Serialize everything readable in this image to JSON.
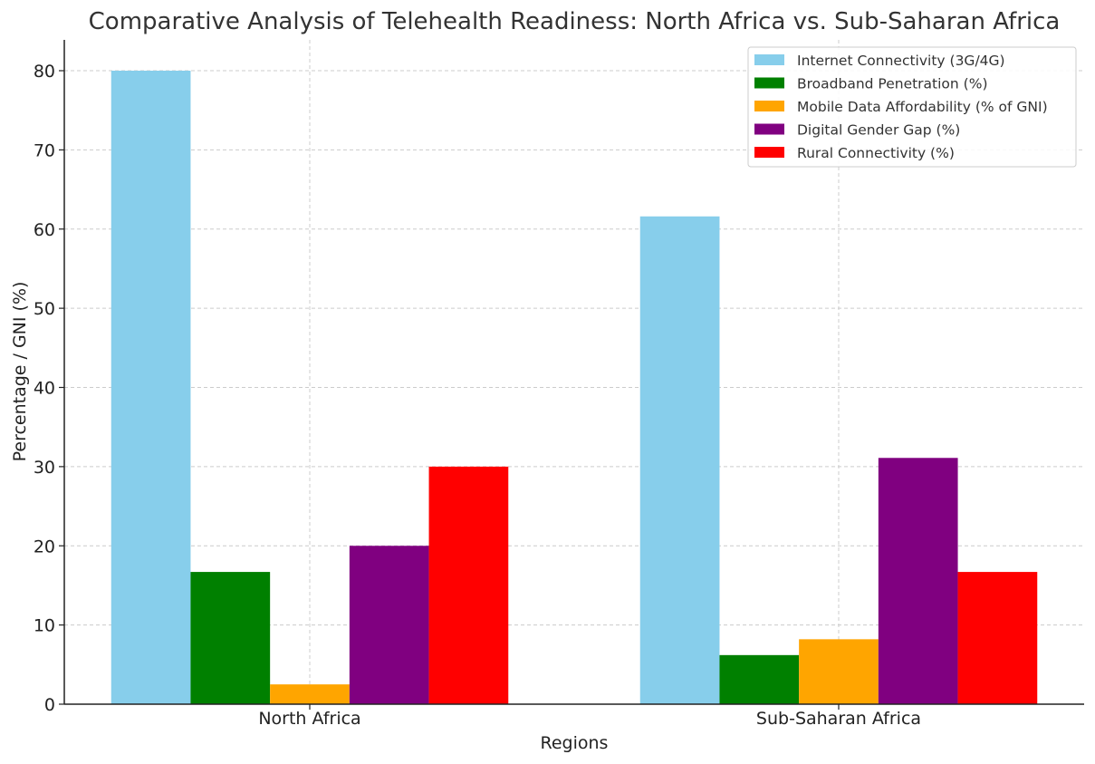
{
  "chart_data": {
    "type": "bar",
    "title": "Comparative Analysis of Telehealth Readiness: North Africa vs. Sub-Saharan Africa",
    "xlabel": "Regions",
    "ylabel": "Percentage / GNI (%)",
    "categories": [
      "North Africa",
      "Sub-Saharan Africa"
    ],
    "ylim": [
      0,
      84
    ],
    "yticks": [
      0,
      10,
      20,
      30,
      40,
      50,
      60,
      70,
      80
    ],
    "grid": true,
    "legend_position": "top-right",
    "series": [
      {
        "name": "Internet Connectivity (3G/4G)",
        "color": "#87CEEB",
        "values": [
          80,
          61.6
        ]
      },
      {
        "name": "Broadband Penetration (%)",
        "color": "#008000",
        "values": [
          16.7,
          6.2
        ]
      },
      {
        "name": "Mobile Data Affordability (% of GNI)",
        "color": "#FFA500",
        "values": [
          2.5,
          8.2
        ]
      },
      {
        "name": "Digital Gender Gap (%)",
        "color": "#800080",
        "values": [
          20,
          31.1
        ]
      },
      {
        "name": "Rural Connectivity (%)",
        "color": "#FF0000",
        "values": [
          30,
          16.7
        ]
      }
    ]
  }
}
